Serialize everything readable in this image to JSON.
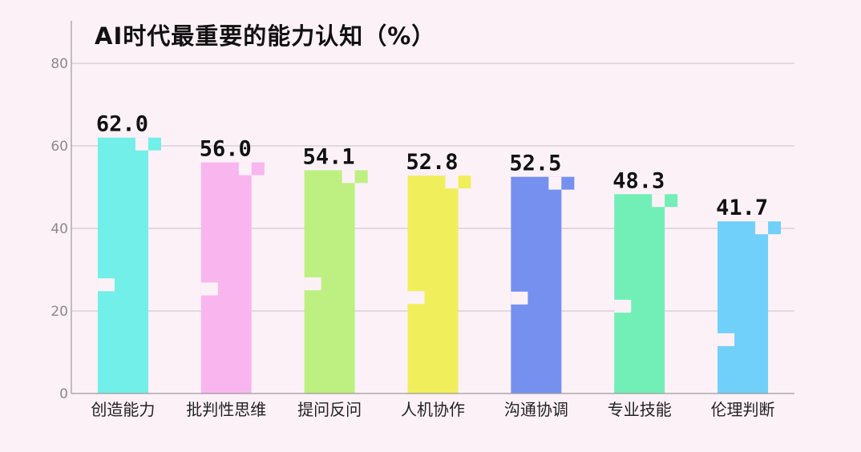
{
  "chart_data": {
    "type": "bar",
    "title": "AI时代最重要的能力认知（%）",
    "categories": [
      "创造能力",
      "批判性思维",
      "提问反问",
      "人机协作",
      "沟通协调",
      "专业技能",
      "伦理判断"
    ],
    "values": [
      62.0,
      56.0,
      54.1,
      52.8,
      52.5,
      48.3,
      41.7
    ],
    "value_labels": [
      "62.0",
      "56.0",
      "54.1",
      "52.8",
      "52.5",
      "48.3",
      "41.7"
    ],
    "colors": [
      "#72efe8",
      "#f9b6ee",
      "#bdf081",
      "#f0ef5b",
      "#7590ee",
      "#72efb6",
      "#70d0fa"
    ],
    "yticks": [
      0,
      20,
      40,
      60,
      80
    ],
    "ylim": [
      0,
      80
    ],
    "xlabel": "",
    "ylabel": "",
    "grid": true,
    "legend": "none"
  }
}
